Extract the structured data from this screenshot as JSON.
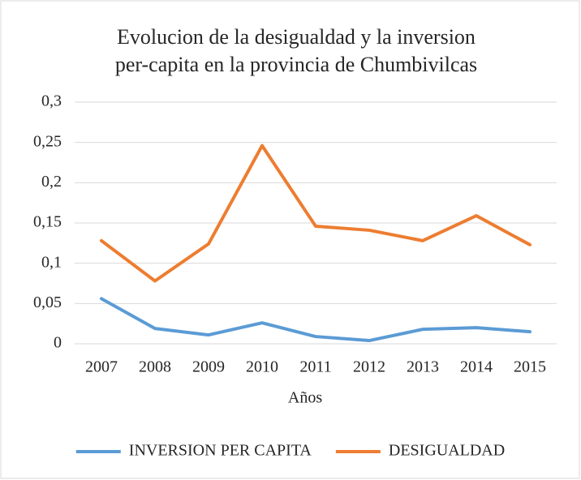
{
  "chart_data": {
    "type": "line",
    "title": [
      "Evolucion de la desigualdad y la inversion",
      "per-capita en la provincia de Chumbivilcas"
    ],
    "x_label": "Años",
    "categories": [
      "2007",
      "2008",
      "2009",
      "2010",
      "2011",
      "2012",
      "2013",
      "2014",
      "2015"
    ],
    "series": [
      {
        "name": "INVERSION PER CAPITA",
        "color": "#5b9bd5",
        "values": [
          0.056,
          0.019,
          0.011,
          0.026,
          0.009,
          0.004,
          0.018,
          0.02,
          0.015
        ]
      },
      {
        "name": "DESIGUALDAD",
        "color": "#ed7d31",
        "values": [
          0.128,
          0.078,
          0.124,
          0.246,
          0.146,
          0.141,
          0.128,
          0.159,
          0.123
        ]
      }
    ],
    "ylim": [
      0,
      0.3
    ],
    "yticks": [
      0,
      {
        "value": 0.05,
        "label": "0,05"
      },
      {
        "value": 0.1,
        "label": "0,1"
      },
      {
        "value": 0.15,
        "label": "0,15"
      },
      {
        "value": 0.2,
        "label": "0,2"
      },
      {
        "value": 0.25,
        "label": "0,25"
      },
      {
        "value": 0.3,
        "label": "0,3"
      }
    ],
    "grid": true,
    "legend": "bottom"
  }
}
